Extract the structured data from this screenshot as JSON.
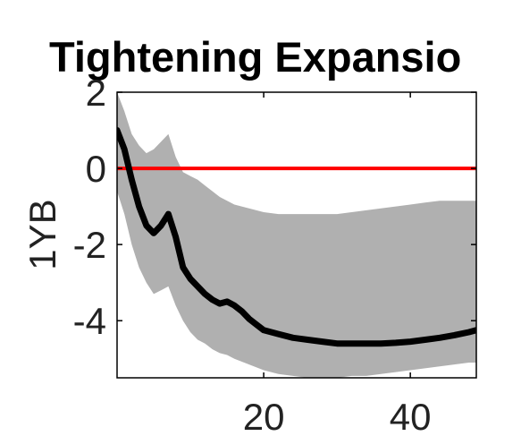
{
  "chart_data": {
    "type": "line",
    "title": "Tightening Expansio",
    "xlabel": "",
    "ylabel": "1YB",
    "xlim": [
      0,
      49
    ],
    "ylim": [
      -5.5,
      2
    ],
    "x_ticks": [
      20,
      40
    ],
    "y_ticks": [
      2,
      0,
      -2,
      -4
    ],
    "grid": false,
    "legend": "none",
    "series": [
      {
        "role": "median",
        "color": "#000000",
        "x": [
          0,
          1,
          2,
          3,
          4,
          5,
          6,
          7,
          8,
          9,
          10,
          11,
          12,
          13,
          14,
          15,
          16,
          17,
          18,
          19,
          20,
          22,
          24,
          26,
          28,
          30,
          32,
          34,
          36,
          38,
          40,
          42,
          44,
          46,
          48,
          49
        ],
        "y": [
          1.0,
          0.5,
          -0.3,
          -1.0,
          -1.5,
          -1.7,
          -1.5,
          -1.2,
          -1.8,
          -2.6,
          -2.9,
          -3.1,
          -3.3,
          -3.45,
          -3.55,
          -3.5,
          -3.6,
          -3.75,
          -3.95,
          -4.1,
          -4.25,
          -4.35,
          -4.45,
          -4.5,
          -4.55,
          -4.6,
          -4.6,
          -4.6,
          -4.6,
          -4.58,
          -4.55,
          -4.5,
          -4.45,
          -4.38,
          -4.3,
          -4.25
        ]
      },
      {
        "role": "upper_band",
        "color": "#b0b0b0",
        "x": [
          0,
          1,
          2,
          3,
          4,
          5,
          6,
          7,
          8,
          9,
          10,
          11,
          12,
          13,
          14,
          15,
          16,
          18,
          20,
          22,
          24,
          26,
          28,
          30,
          32,
          34,
          36,
          38,
          40,
          42,
          44,
          46,
          48,
          49
        ],
        "y": [
          2.0,
          1.5,
          0.9,
          0.6,
          0.4,
          0.5,
          0.7,
          0.9,
          0.3,
          -0.1,
          -0.2,
          -0.3,
          -0.45,
          -0.6,
          -0.75,
          -0.85,
          -0.95,
          -1.05,
          -1.15,
          -1.2,
          -1.2,
          -1.2,
          -1.2,
          -1.2,
          -1.15,
          -1.1,
          -1.05,
          -1.0,
          -0.95,
          -0.9,
          -0.85,
          -0.85,
          -0.85,
          -0.85
        ]
      },
      {
        "role": "lower_band",
        "color": "#b0b0b0",
        "x": [
          0,
          1,
          2,
          3,
          4,
          5,
          6,
          7,
          8,
          9,
          10,
          11,
          12,
          13,
          14,
          15,
          16,
          18,
          20,
          22,
          24,
          26,
          28,
          30,
          32,
          34,
          36,
          38,
          40,
          42,
          44,
          46,
          48,
          49
        ],
        "y": [
          -0.6,
          -1.2,
          -2.0,
          -2.6,
          -3.0,
          -3.3,
          -3.2,
          -3.1,
          -3.6,
          -4.0,
          -4.3,
          -4.5,
          -4.6,
          -4.75,
          -4.85,
          -4.9,
          -5.0,
          -5.15,
          -5.3,
          -5.4,
          -5.45,
          -5.5,
          -5.5,
          -5.5,
          -5.45,
          -5.45,
          -5.4,
          -5.35,
          -5.3,
          -5.25,
          -5.2,
          -5.15,
          -5.1,
          -5.1
        ]
      },
      {
        "role": "reference_line",
        "color": "#ff0000",
        "x": [
          0,
          49
        ],
        "y": [
          0,
          0
        ]
      }
    ]
  }
}
